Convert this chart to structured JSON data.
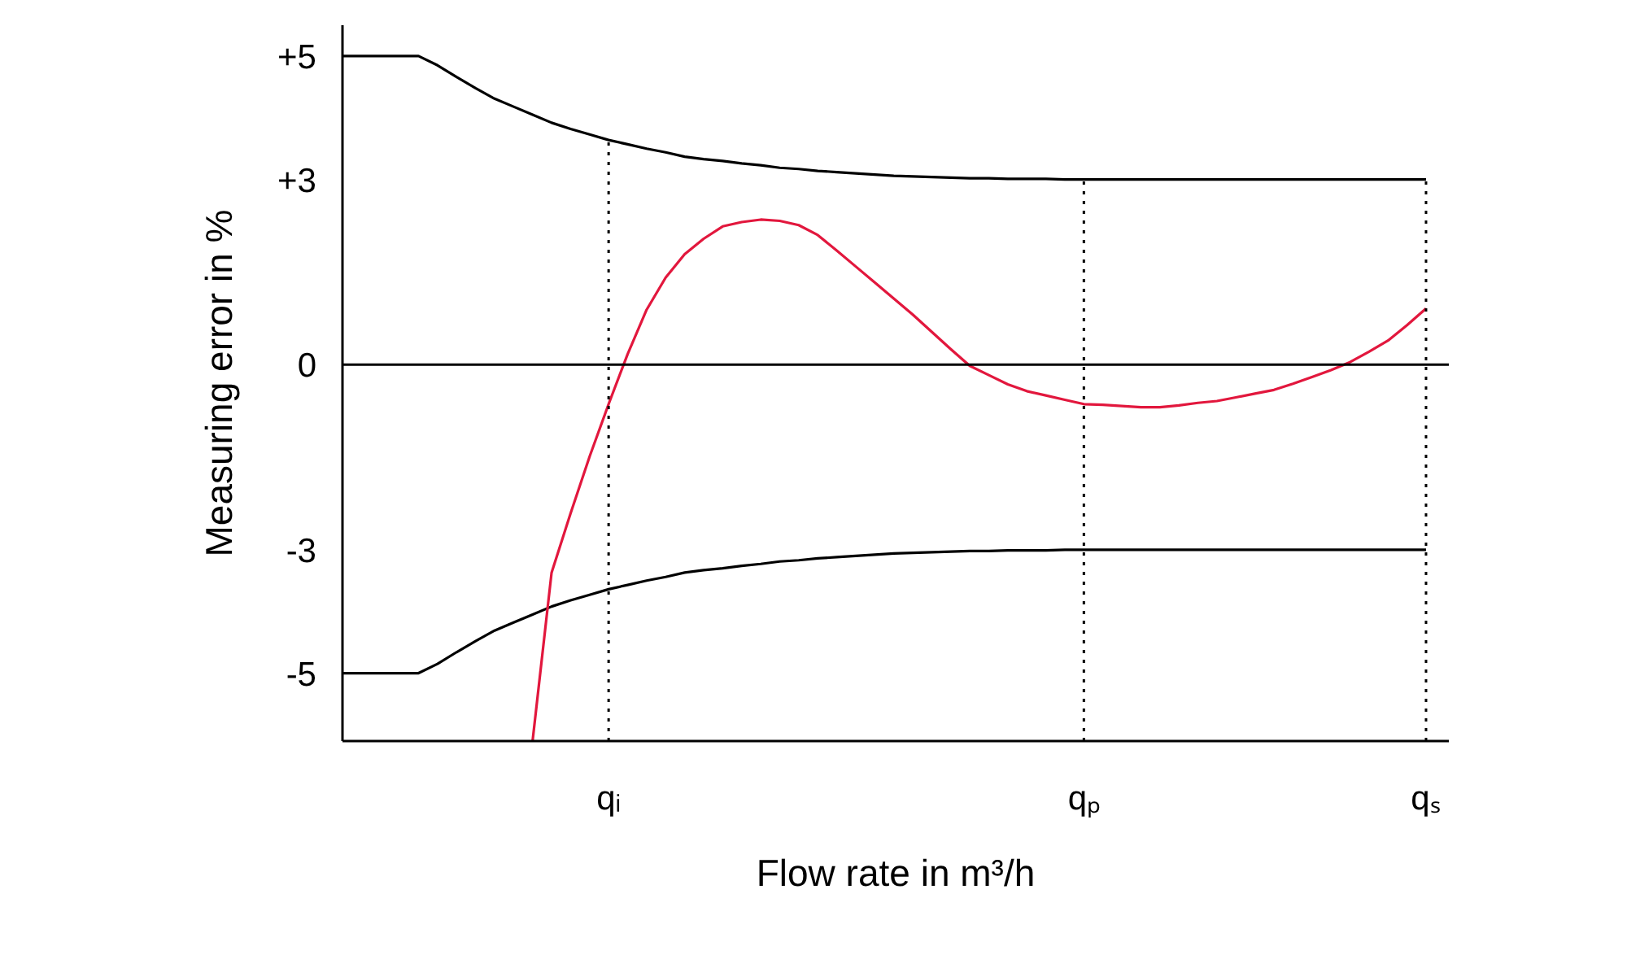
{
  "chart_data": {
    "type": "line",
    "xlabel": "Flow rate in m³/h",
    "ylabel": "Measuring error in %",
    "categories": [
      null,
      null,
      null,
      null,
      null,
      null,
      null,
      null,
      null,
      null,
      null,
      null,
      null,
      null,
      "qᵢ",
      null,
      null,
      null,
      null,
      null,
      null,
      null,
      null,
      null,
      null,
      null,
      null,
      null,
      null,
      null,
      null,
      null,
      null,
      null,
      null,
      null,
      null,
      null,
      null,
      "qₚ",
      null,
      null,
      null,
      null,
      null,
      null,
      null,
      null,
      null,
      null,
      null,
      null,
      null,
      null,
      null,
      null,
      null,
      "qₛ"
    ],
    "ylim": [
      -6.1,
      5.5
    ],
    "yticks": [
      {
        "value": 5,
        "label": "+5"
      },
      {
        "value": 3,
        "label": "+3"
      },
      {
        "value": 0,
        "label": "0"
      },
      {
        "value": -3,
        "label": "-3"
      },
      {
        "value": -5,
        "label": "-5"
      }
    ],
    "series": [
      {
        "color": "#000000",
        "values": [
          5,
          5,
          5,
          5,
          5,
          4.85,
          4.66,
          4.48,
          4.31,
          4.18,
          4.05,
          3.92,
          3.82,
          3.73,
          3.64,
          3.57,
          3.5,
          3.44,
          3.37,
          3.33,
          3.3,
          3.26,
          3.23,
          3.19,
          3.17,
          3.14,
          3.12,
          3.1,
          3.08,
          3.06,
          3.05,
          3.04,
          3.03,
          3.02,
          3.02,
          3.01,
          3.01,
          3.01,
          3,
          3,
          3,
          3,
          3,
          3,
          3,
          3,
          3,
          3,
          3,
          3,
          3,
          3,
          3,
          3,
          3,
          3,
          3,
          3
        ]
      },
      {
        "color": "#000000",
        "values": [
          -5,
          -5,
          -5,
          -5,
          -5,
          -4.85,
          -4.66,
          -4.48,
          -4.31,
          -4.18,
          -4.05,
          -3.92,
          -3.82,
          -3.73,
          -3.64,
          -3.57,
          -3.5,
          -3.44,
          -3.37,
          -3.33,
          -3.3,
          -3.26,
          -3.23,
          -3.19,
          -3.17,
          -3.14,
          -3.12,
          -3.1,
          -3.08,
          -3.06,
          -3.05,
          -3.04,
          -3.03,
          -3.02,
          -3.02,
          -3.01,
          -3.01,
          -3.01,
          -3,
          -3,
          -3,
          -3,
          -3,
          -3,
          -3,
          -3,
          -3,
          -3,
          -3,
          -3,
          -3,
          -3,
          -3,
          -3,
          -3,
          -3,
          -3,
          -3
        ]
      },
      {
        "color": "#e2173d",
        "values": [
          null,
          null,
          null,
          null,
          null,
          null,
          null,
          null,
          null,
          null,
          -6.1,
          -3.37,
          -2.41,
          -1.49,
          -0.64,
          0.17,
          0.89,
          1.41,
          1.79,
          2.04,
          2.24,
          2.31,
          2.35,
          2.33,
          2.26,
          2.1,
          1.85,
          1.59,
          1.33,
          1.07,
          0.81,
          0.53,
          0.25,
          -0.02,
          -0.17,
          -0.32,
          -0.43,
          -0.5,
          -0.57,
          -0.64,
          -0.65,
          -0.67,
          -0.69,
          -0.69,
          -0.66,
          -0.62,
          -0.59,
          -0.53,
          -0.47,
          -0.41,
          -0.31,
          -0.2,
          -0.09,
          0.04,
          0.21,
          0.39,
          0.64,
          0.91
        ]
      }
    ],
    "ref_lines": [
      {
        "axis": "y",
        "value": 0,
        "color": "#000000",
        "line_style": "solid"
      },
      {
        "axis": "x",
        "value": "qᵢ",
        "color": "#000000",
        "line_style": "dotted"
      },
      {
        "axis": "x",
        "value": "qₚ",
        "color": "#000000",
        "line_style": "dotted"
      },
      {
        "axis": "x",
        "value": "qₛ",
        "color": "#000000",
        "line_style": "dotted"
      }
    ]
  }
}
